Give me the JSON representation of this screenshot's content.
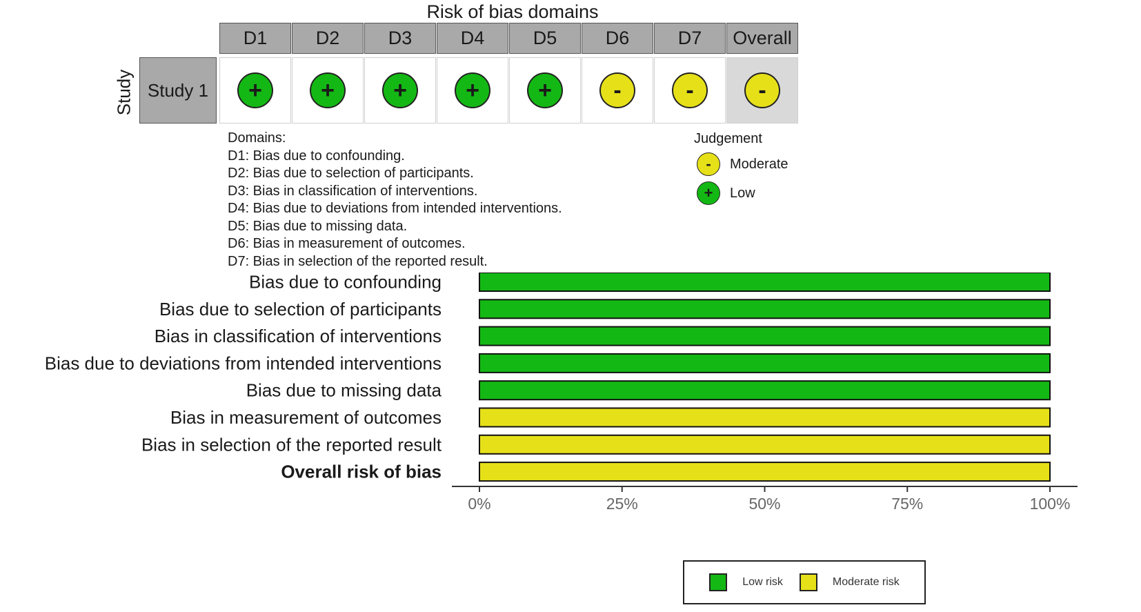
{
  "traffic_light": {
    "title": "Risk of bias domains",
    "y_axis_label": "Study",
    "columns": [
      "D1",
      "D2",
      "D3",
      "D4",
      "D5",
      "D6",
      "D7",
      "Overall"
    ],
    "rows": [
      {
        "study": "Study 1",
        "judgements": [
          "+",
          "+",
          "+",
          "+",
          "+",
          "-",
          "-",
          "-"
        ]
      }
    ],
    "colors": {
      "+": "#14b814",
      "-": "#e6e019"
    },
    "domains_title": "Domains:",
    "domains": [
      "D1: Bias due to confounding.",
      "D2: Bias due to selection of participants.",
      "D3: Bias in classification of interventions.",
      "D4: Bias due to deviations from intended interventions.",
      "D5: Bias due to missing data.",
      "D6: Bias in measurement of outcomes.",
      "D7: Bias in selection of the reported result."
    ],
    "judgement_title": "Judgement",
    "judgement_items": [
      {
        "symbol": "-",
        "label": "Moderate",
        "color": "#e6e019"
      },
      {
        "symbol": "+",
        "label": "Low",
        "color": "#14b814"
      }
    ]
  },
  "chart_data": {
    "type": "bar",
    "orientation": "horizontal",
    "stacked": true,
    "categories": [
      "Bias due to confounding",
      "Bias due to selection of participants",
      "Bias in classification of interventions",
      "Bias due to deviations from intended interventions",
      "Bias due to missing data",
      "Bias in measurement of outcomes",
      "Bias in selection of the reported result",
      "Overall risk of bias"
    ],
    "series": [
      {
        "name": "Low risk",
        "color": "#14b814",
        "values": [
          100,
          100,
          100,
          100,
          100,
          0,
          0,
          0
        ]
      },
      {
        "name": "Moderate risk",
        "color": "#e6e019",
        "values": [
          0,
          0,
          0,
          0,
          0,
          100,
          100,
          100
        ]
      }
    ],
    "xlim": [
      0,
      100
    ],
    "xticks": [
      "0%",
      "25%",
      "50%",
      "75%",
      "100%"
    ],
    "bold_category": "Overall risk of bias",
    "legend_position": "bottom"
  }
}
